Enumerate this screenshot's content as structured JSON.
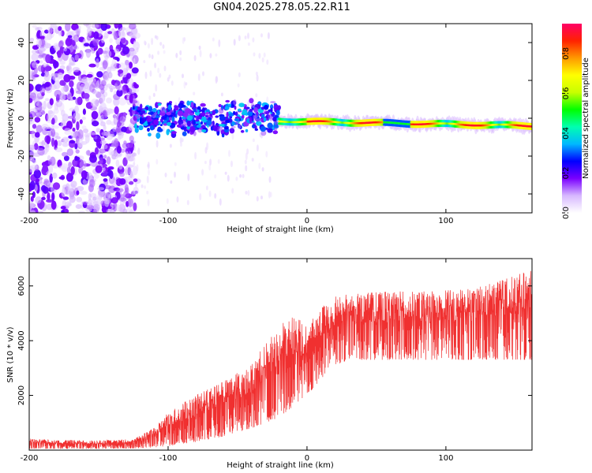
{
  "title": "GN04.2025.278.05.22.R11",
  "chart_data": [
    {
      "type": "heatmap",
      "xlabel": "Height of straight line (km)",
      "ylabel": "Frequency (Hz)",
      "xlim": [
        -200,
        162
      ],
      "ylim": [
        -50,
        50
      ],
      "xticks": [
        -200,
        -100,
        0,
        100
      ],
      "yticks": [
        40,
        20,
        0,
        -20,
        -40
      ],
      "colorbar": {
        "label": "Normalized spectral amplitude",
        "range": [
          0,
          0.95
        ],
        "ticks": [
          0.0,
          0.2,
          0.4,
          0.6,
          0.8
        ],
        "colors": [
          "#ffffff",
          "#d7b8ff",
          "#7a00ff",
          "#0000ff",
          "#00b8ff",
          "#00ffb0",
          "#00ff00",
          "#c8ff00",
          "#ffff00",
          "#ff9900",
          "#ff2200",
          "#ff0066"
        ]
      },
      "features": [
        {
          "name": "broadband noise",
          "x_range": [
            -200,
            -125
          ],
          "freq_range": [
            -50,
            50
          ],
          "amplitude": 0.1
        },
        {
          "name": "scattered blobs",
          "x_range": [
            -125,
            -20
          ],
          "freq_center": 0,
          "freq_spread": 10,
          "amplitude": 0.3
        },
        {
          "name": "narrow signal band",
          "x_range": [
            -20,
            162
          ],
          "freq_center_start": -1.5,
          "freq_center_end": -4,
          "amplitude_max": 0.9
        }
      ]
    },
    {
      "type": "line",
      "xlabel": "Height of straight line (km)",
      "ylabel": "SNR (10 * v/v)",
      "xlim": [
        -200,
        162
      ],
      "ylim": [
        0,
        7000
      ],
      "xticks": [
        -200,
        -100,
        0,
        100
      ],
      "yticks": [
        2000,
        4000,
        6000
      ],
      "series_color": "#f03030",
      "envelope": {
        "x": [
          -200,
          -150,
          -125,
          -110,
          -100,
          -80,
          -60,
          -40,
          -20,
          -10,
          0,
          10,
          20,
          30,
          60,
          90,
          120,
          140,
          162
        ],
        "lower": [
          50,
          50,
          60,
          100,
          150,
          300,
          500,
          800,
          1200,
          1600,
          2000,
          2600,
          3100,
          3300,
          3300,
          3300,
          3300,
          3300,
          3300
        ],
        "upper": [
          400,
          350,
          400,
          800,
          1400,
          2000,
          2500,
          3200,
          4500,
          5000,
          4500,
          5200,
          5600,
          5700,
          5800,
          5800,
          5900,
          6200,
          6600
        ]
      }
    }
  ]
}
